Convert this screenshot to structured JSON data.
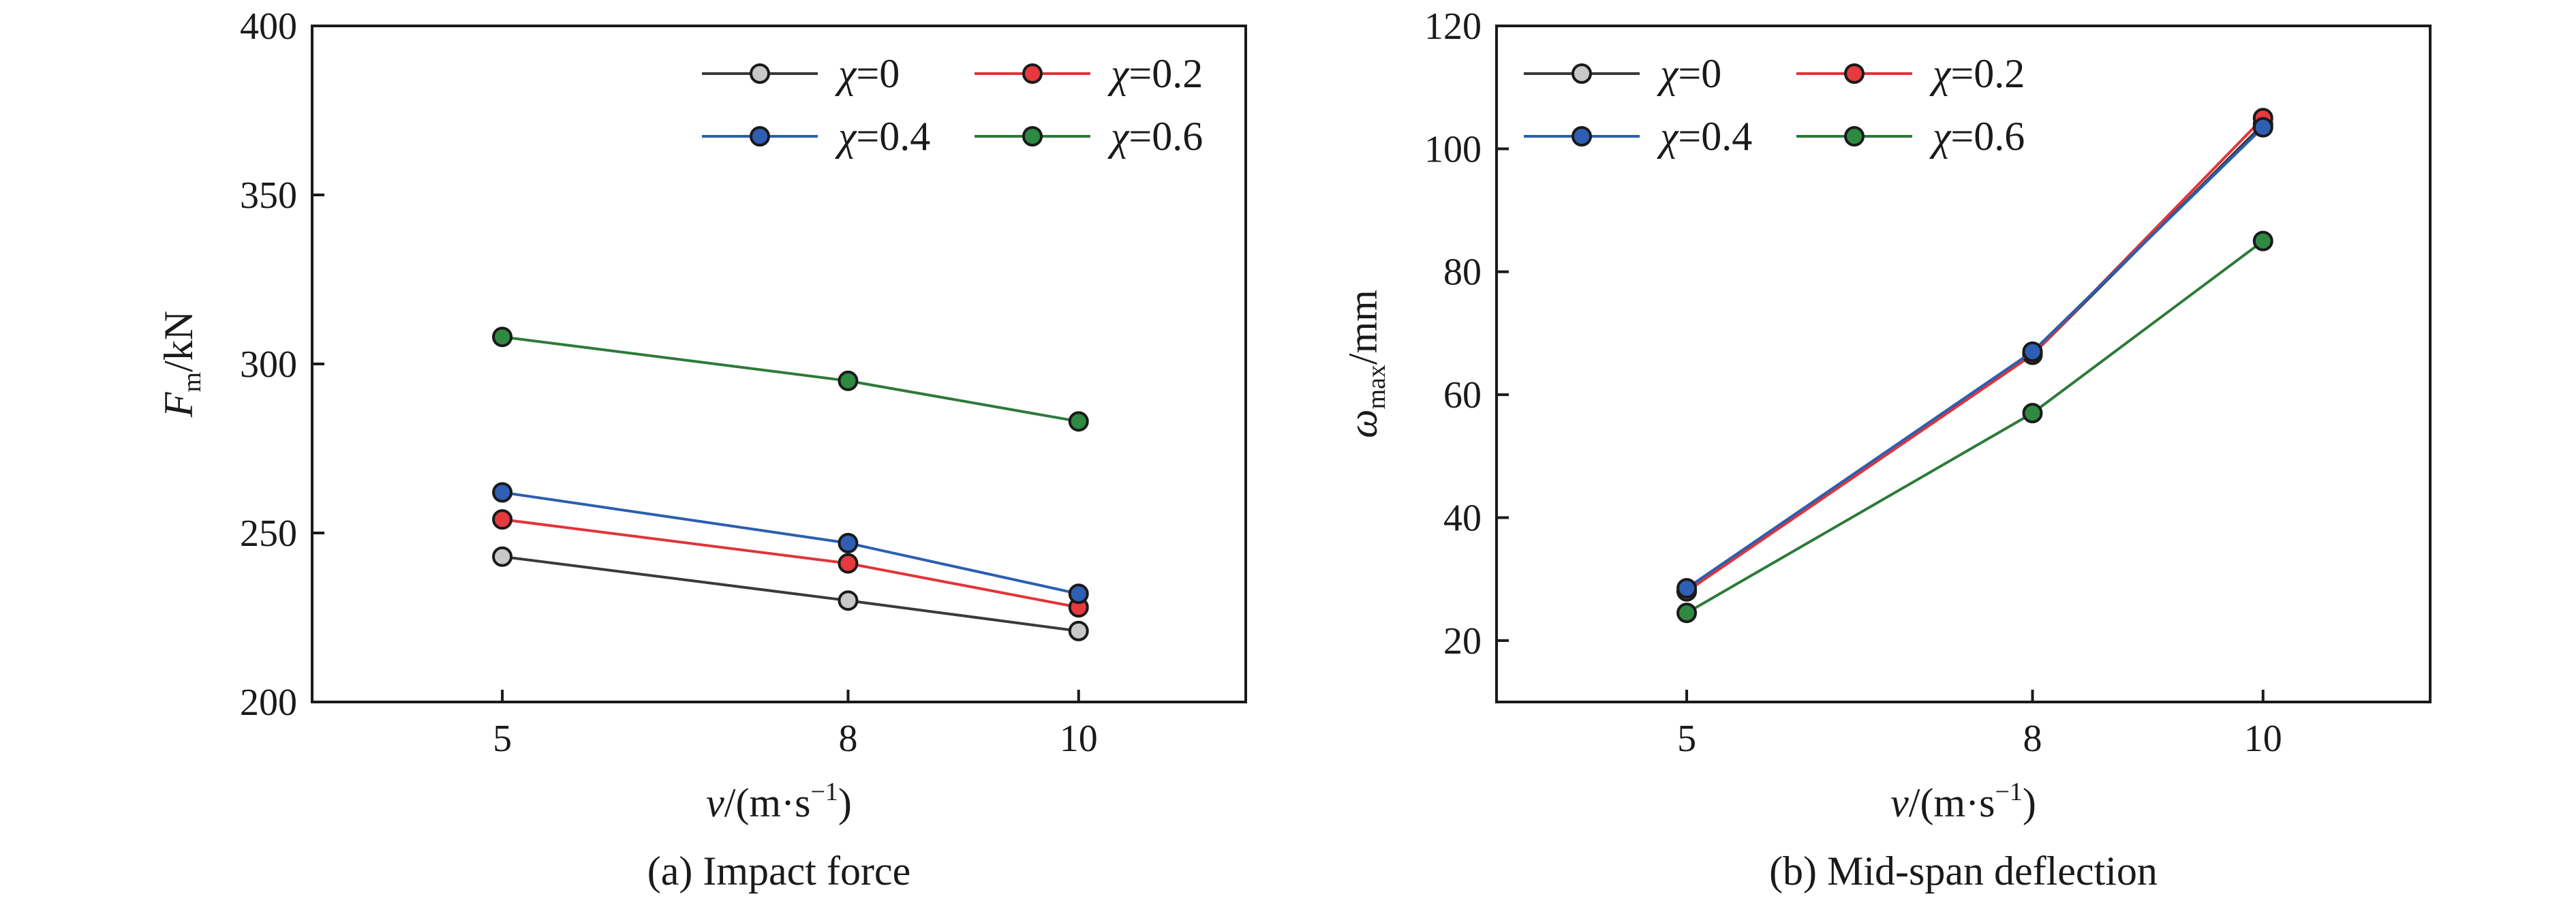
{
  "chart_data": [
    {
      "type": "line",
      "caption": "(a) Impact force",
      "ylabel": {
        "symbol": "F",
        "subscript": "m",
        "unit": "/kN"
      },
      "xlabel": {
        "symbol": "v",
        "unit": "/(m·s",
        "superscript": "−1",
        "close": ")"
      },
      "x": [
        5,
        8,
        10
      ],
      "x_ticks": [
        "5",
        "8",
        "10"
      ],
      "ylim": [
        200,
        400
      ],
      "y_ticks": [
        200,
        250,
        300,
        350,
        400
      ],
      "grid": false,
      "legend": "top-right, 2 columns",
      "series": [
        {
          "name": "χ=0",
          "symbol": "χ",
          "value_text": "=0",
          "values": [
            243,
            230,
            221
          ],
          "color": "#3a3a3a",
          "marker": "#c8c8c8"
        },
        {
          "name": "χ=0.2",
          "symbol": "χ",
          "value_text": "=0.2",
          "values": [
            254,
            241,
            228
          ],
          "color": "#e0343a",
          "marker": "#e63a3f"
        },
        {
          "name": "χ=0.4",
          "symbol": "χ",
          "value_text": "=0.4",
          "values": [
            262,
            247,
            232
          ],
          "color": "#2b5fb0",
          "marker": "#2f5fb4"
        },
        {
          "name": "χ=0.6",
          "symbol": "χ",
          "value_text": "=0.6",
          "values": [
            308,
            295,
            283
          ],
          "color": "#2d7a3a",
          "marker": "#2e8a40"
        }
      ]
    },
    {
      "type": "line",
      "caption": "(b) Mid-span deflection",
      "ylabel": {
        "symbol": "ω",
        "subscript": "max",
        "unit": "/mm"
      },
      "xlabel": {
        "symbol": "v",
        "unit": "/(m·s",
        "superscript": "−1",
        "close": ")"
      },
      "x": [
        5,
        8,
        10
      ],
      "x_ticks": [
        "5",
        "8",
        "10"
      ],
      "ylim": [
        10,
        120
      ],
      "y_ticks": [
        20,
        40,
        60,
        80,
        100,
        120
      ],
      "grid": false,
      "legend": "top-left, 2 columns",
      "series": [
        {
          "name": "χ=0",
          "symbol": "χ",
          "value_text": "=0",
          "values": [
            28,
            66.5,
            104
          ],
          "color": "#3a3a3a",
          "marker": "#c8c8c8"
        },
        {
          "name": "χ=0.2",
          "symbol": "χ",
          "value_text": "=0.2",
          "values": [
            28,
            66.5,
            105
          ],
          "color": "#e0343a",
          "marker": "#e63a3f"
        },
        {
          "name": "χ=0.4",
          "symbol": "χ",
          "value_text": "=0.4",
          "values": [
            28.5,
            67,
            103.5
          ],
          "color": "#2b5fb0",
          "marker": "#2f5fb4"
        },
        {
          "name": "χ=0.6",
          "symbol": "χ",
          "value_text": "=0.6",
          "values": [
            24.5,
            57,
            85
          ],
          "color": "#2d7a3a",
          "marker": "#2e8a40"
        }
      ]
    }
  ]
}
